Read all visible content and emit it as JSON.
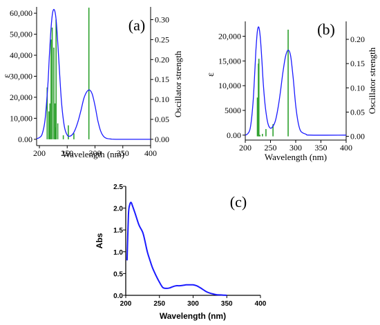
{
  "chart_data": [
    {
      "type": "line",
      "panel_label": "(a)",
      "xlabel": "Wavelength (nm)",
      "ylabel": "ε",
      "y2label": "Oscillator strength",
      "xlim": [
        195,
        400
      ],
      "ylim": [
        -3000,
        63000
      ],
      "y2lim": [
        -0.0158,
        0.332
      ],
      "xticks": [
        "200",
        "250",
        "300",
        "350",
        "400"
      ],
      "yticks": [
        "0.00",
        "10,000",
        "20,000",
        "30,000",
        "40,000",
        "50,000",
        "60,000"
      ],
      "y2ticks": [
        "0.00",
        "0.05",
        "0.10",
        "0.15",
        "0.20",
        "0.25",
        "0.30"
      ],
      "colors": {
        "curve": "#1a1aff",
        "sticks": "#2ca02c"
      },
      "series": [
        {
          "kind": "spectrum",
          "x": [
            195,
            200,
            205,
            210,
            215,
            218,
            221,
            224,
            227,
            230,
            233,
            236,
            240,
            245,
            250,
            255,
            260,
            265,
            270,
            275,
            280,
            285,
            290,
            295,
            300,
            305,
            310,
            315,
            320,
            330,
            340,
            360,
            400
          ],
          "y": [
            300,
            800,
            2500,
            9000,
            25000,
            40000,
            53000,
            60500,
            61500,
            57000,
            46000,
            33000,
            17000,
            6000,
            2000,
            1500,
            2500,
            5000,
            9000,
            14000,
            19500,
            22500,
            23500,
            21500,
            16000,
            9000,
            4000,
            1500,
            500,
            100,
            0,
            0,
            0
          ]
        },
        {
          "kind": "sticks",
          "x": [
            214,
            217,
            219,
            221,
            223,
            226,
            228,
            229,
            230,
            233,
            243,
            252,
            262,
            289
          ],
          "f": [
            0.13,
            0.07,
            0.09,
            0.25,
            0.28,
            0.23,
            0.09,
            0.03,
            0.3,
            0.04,
            0.01,
            0.035,
            0.015,
            0.33
          ]
        }
      ]
    },
    {
      "type": "line",
      "panel_label": "(b)",
      "xlabel": "Wavelength (nm)",
      "ylabel": "ε",
      "y2label": "Oscillator strength",
      "xlim": [
        200,
        400
      ],
      "ylim": [
        -1000,
        23000
      ],
      "y2lim": [
        -0.0077,
        0.237
      ],
      "xticks": [
        "200",
        "250",
        "300",
        "350",
        "400"
      ],
      "yticks": [
        "0.00",
        "5000",
        "10,000",
        "15,000",
        "20,000"
      ],
      "y2ticks": [
        "0.00",
        "0.05",
        "0.10",
        "0.15",
        "0.20"
      ],
      "colors": {
        "curve": "#1a1aff",
        "sticks": "#2ca02c"
      },
      "series": [
        {
          "kind": "spectrum",
          "x": [
            200,
            205,
            210,
            215,
            218,
            221,
            224,
            227,
            230,
            233,
            236,
            240,
            245,
            250,
            255,
            260,
            265,
            270,
            275,
            280,
            285,
            290,
            295,
            300,
            305,
            310,
            320,
            330,
            400
          ],
          "y": [
            0,
            300,
            1500,
            6000,
            11000,
            17000,
            21000,
            21800,
            19500,
            15000,
            10000,
            5500,
            2300,
            1400,
            1800,
            3000,
            5500,
            9000,
            13000,
            16000,
            17200,
            16000,
            11500,
            6000,
            2500,
            800,
            200,
            0,
            0
          ]
        },
        {
          "kind": "sticks",
          "x": [
            224,
            226,
            227,
            229,
            234,
            241,
            255,
            285
          ],
          "f": [
            0.08,
            0.15,
            0.16,
            0.003,
            0.005,
            0.015,
            0.025,
            0.22
          ]
        }
      ]
    },
    {
      "type": "line",
      "panel_label": "(c)",
      "xlabel": "Wavelength (nm)",
      "ylabel": "Abs",
      "xlim": [
        200,
        400
      ],
      "ylim": [
        0,
        2.5
      ],
      "xticks": [
        "200",
        "250",
        "300",
        "350",
        "400"
      ],
      "yticks": [
        "0.0",
        "0.5",
        "1.0",
        "1.5",
        "2.0",
        "2.5"
      ],
      "colors": {
        "curve": "#1a1aff"
      },
      "series": [
        {
          "kind": "spectrum",
          "x": [
            202,
            204,
            206,
            208,
            210,
            213,
            216,
            220,
            225,
            228,
            232,
            236,
            240,
            245,
            250,
            255,
            260,
            265,
            270,
            275,
            280,
            285,
            290,
            295,
            300,
            305,
            310,
            315,
            320,
            325,
            330,
            335,
            340,
            345,
            350
          ],
          "y": [
            0.8,
            1.85,
            2.08,
            2.13,
            2.05,
            1.92,
            1.78,
            1.6,
            1.45,
            1.28,
            1.0,
            0.8,
            0.62,
            0.45,
            0.3,
            0.18,
            0.16,
            0.17,
            0.2,
            0.22,
            0.22,
            0.23,
            0.24,
            0.24,
            0.24,
            0.22,
            0.18,
            0.13,
            0.08,
            0.05,
            0.03,
            0.015,
            0.01,
            0.005,
            0.0
          ]
        }
      ]
    }
  ]
}
